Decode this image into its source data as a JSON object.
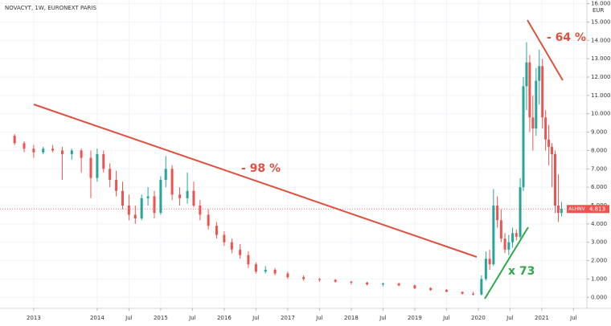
{
  "chart_data": {
    "type": "candlestick",
    "title": "NOVACYT, 1W, EURONEXT PARIS",
    "currency": "EUR",
    "symbol": "ALHNV",
    "last_price": 4.813,
    "annotations": [
      "- 98 %",
      "- 64 %",
      "x 73"
    ],
    "up_color": "#26a69a",
    "down_color": "#ef5350",
    "grid": true,
    "xlim": [
      2012.47,
      2021.71
    ],
    "xticks": [
      {
        "value": 2013,
        "label": "2013"
      },
      {
        "value": 2014,
        "label": "2014"
      },
      {
        "value": 2014.5,
        "label": "Jul"
      },
      {
        "value": 2015,
        "label": "2015"
      },
      {
        "value": 2015.5,
        "label": "Jul"
      },
      {
        "value": 2016,
        "label": "2016"
      },
      {
        "value": 2016.5,
        "label": "Jul"
      },
      {
        "value": 2017,
        "label": "2017"
      },
      {
        "value": 2017.5,
        "label": "Jul"
      },
      {
        "value": 2018,
        "label": "2018"
      },
      {
        "value": 2018.5,
        "label": "Jul"
      },
      {
        "value": 2019,
        "label": "2019"
      },
      {
        "value": 2019.5,
        "label": "Jul"
      },
      {
        "value": 2020,
        "label": "2020"
      },
      {
        "value": 2020.5,
        "label": "Jul"
      },
      {
        "value": 2021,
        "label": "2021"
      },
      {
        "value": 2021.5,
        "label": "Jul"
      }
    ],
    "ylim": [
      -0.6,
      16.2
    ],
    "yticks": [
      {
        "value": 0,
        "label": "0.000"
      },
      {
        "value": 1,
        "label": "1.000"
      },
      {
        "value": 2,
        "label": "2.000"
      },
      {
        "value": 3,
        "label": "3.000"
      },
      {
        "value": 4,
        "label": "4.000"
      },
      {
        "value": 5,
        "label": "5.000"
      },
      {
        "value": 6,
        "label": "6.000"
      },
      {
        "value": 7,
        "label": "7.000"
      },
      {
        "value": 8,
        "label": "8.000"
      },
      {
        "value": 9,
        "label": "9.000"
      },
      {
        "value": 10,
        "label": "10.000"
      },
      {
        "value": 11,
        "label": "11.000"
      },
      {
        "value": 12,
        "label": "12.000"
      },
      {
        "value": 13,
        "label": "13.000"
      },
      {
        "value": 14,
        "label": "14.000"
      },
      {
        "value": 15,
        "label": "15.000"
      },
      {
        "value": 16,
        "label": "16.000"
      }
    ],
    "x": [
      2012.7,
      2012.85,
      2013.0,
      2013.15,
      2013.3,
      2013.45,
      2013.6,
      2013.75,
      2013.9,
      2014.0,
      2014.1,
      2014.2,
      2014.3,
      2014.4,
      2014.5,
      2014.6,
      2014.7,
      2014.8,
      2014.9,
      2015.0,
      2015.08,
      2015.18,
      2015.3,
      2015.42,
      2015.52,
      2015.62,
      2015.75,
      2015.88,
      2016.0,
      2016.12,
      2016.25,
      2016.38,
      2016.5,
      2016.65,
      2016.8,
      2017.0,
      2017.25,
      2017.5,
      2017.75,
      2018.0,
      2018.25,
      2018.5,
      2018.75,
      2019.0,
      2019.25,
      2019.5,
      2019.75,
      2019.92,
      2020.05,
      2020.12,
      2020.18,
      2020.24,
      2020.3,
      2020.36,
      2020.42,
      2020.48,
      2020.54,
      2020.6,
      2020.66,
      2020.71,
      2020.76,
      2020.81,
      2020.86,
      2020.91,
      2020.96,
      2021.01,
      2021.06,
      2021.11,
      2021.16,
      2021.21,
      2021.26,
      2021.31
    ],
    "open": [
      8.8,
      8.4,
      8.1,
      7.9,
      8.1,
      8.0,
      7.8,
      8.0,
      7.6,
      6.5,
      7.8,
      7.0,
      6.4,
      5.8,
      5.0,
      4.5,
      4.3,
      5.4,
      5.5,
      4.6,
      6.4,
      7.0,
      5.6,
      5.4,
      5.8,
      5.0,
      4.5,
      3.9,
      3.4,
      3.0,
      2.6,
      2.3,
      1.8,
      1.4,
      1.5,
      1.3,
      1.1,
      1.0,
      0.95,
      0.85,
      0.8,
      0.7,
      0.75,
      0.65,
      0.5,
      0.4,
      0.3,
      0.2,
      0.15,
      1.0,
      2.1,
      1.8,
      5.0,
      4.2,
      3.2,
      2.6,
      3.0,
      3.5,
      3.3,
      6.0,
      11.5,
      12.8,
      9.8,
      9.2,
      11.8,
      12.6,
      9.8,
      8.6,
      8.2,
      7.8,
      5.0,
      4.6
    ],
    "high": [
      8.9,
      8.5,
      8.3,
      8.2,
      8.3,
      8.2,
      8.1,
      8.1,
      8.0,
      8.1,
      8.0,
      7.3,
      6.9,
      6.3,
      5.6,
      5.0,
      5.6,
      6.0,
      5.8,
      6.6,
      7.7,
      7.2,
      6.0,
      6.8,
      6.3,
      5.3,
      4.8,
      4.1,
      3.6,
      3.2,
      2.9,
      2.5,
      1.9,
      1.7,
      1.6,
      1.4,
      1.2,
      1.05,
      1.0,
      0.9,
      0.85,
      0.8,
      0.8,
      0.7,
      0.55,
      0.45,
      0.32,
      0.3,
      1.2,
      2.5,
      2.6,
      5.9,
      5.5,
      4.8,
      3.5,
      3.4,
      3.8,
      3.7,
      6.5,
      12.0,
      13.9,
      13.2,
      11.0,
      12.5,
      13.5,
      13.0,
      10.2,
      9.4,
      8.4,
      8.0,
      6.7,
      5.2
    ],
    "low": [
      8.3,
      7.9,
      7.6,
      7.8,
      7.9,
      6.4,
      7.5,
      6.8,
      5.4,
      6.3,
      6.8,
      6.0,
      5.5,
      4.8,
      4.2,
      4.0,
      4.2,
      5.0,
      4.3,
      4.5,
      6.0,
      5.3,
      5.0,
      5.1,
      4.9,
      4.2,
      3.7,
      3.2,
      2.8,
      2.4,
      2.1,
      1.6,
      1.3,
      1.3,
      1.2,
      1.0,
      0.9,
      0.85,
      0.8,
      0.7,
      0.65,
      0.6,
      0.6,
      0.45,
      0.35,
      0.28,
      0.15,
      0.1,
      0.1,
      0.9,
      1.5,
      1.7,
      3.8,
      3.0,
      2.4,
      2.3,
      2.7,
      3.1,
      3.2,
      5.8,
      10.2,
      9.0,
      8.0,
      8.8,
      10.5,
      9.2,
      8.0,
      7.2,
      6.0,
      4.6,
      4.1,
      4.4
    ],
    "close": [
      8.4,
      8.1,
      7.9,
      8.1,
      8.0,
      7.8,
      8.0,
      7.6,
      6.5,
      7.8,
      7.0,
      6.4,
      5.8,
      5.0,
      4.5,
      4.3,
      5.4,
      5.5,
      4.6,
      6.4,
      7.0,
      5.6,
      5.4,
      5.8,
      5.0,
      4.5,
      3.9,
      3.4,
      3.0,
      2.6,
      2.3,
      1.8,
      1.4,
      1.5,
      1.3,
      1.1,
      1.0,
      0.95,
      0.85,
      0.8,
      0.7,
      0.75,
      0.65,
      0.5,
      0.4,
      0.3,
      0.2,
      0.15,
      1.0,
      2.1,
      1.8,
      5.0,
      4.2,
      3.2,
      2.6,
      3.0,
      3.5,
      3.3,
      6.0,
      11.5,
      12.8,
      9.8,
      9.2,
      11.8,
      12.6,
      9.8,
      8.6,
      8.2,
      7.8,
      5.0,
      4.6,
      4.813
    ]
  }
}
